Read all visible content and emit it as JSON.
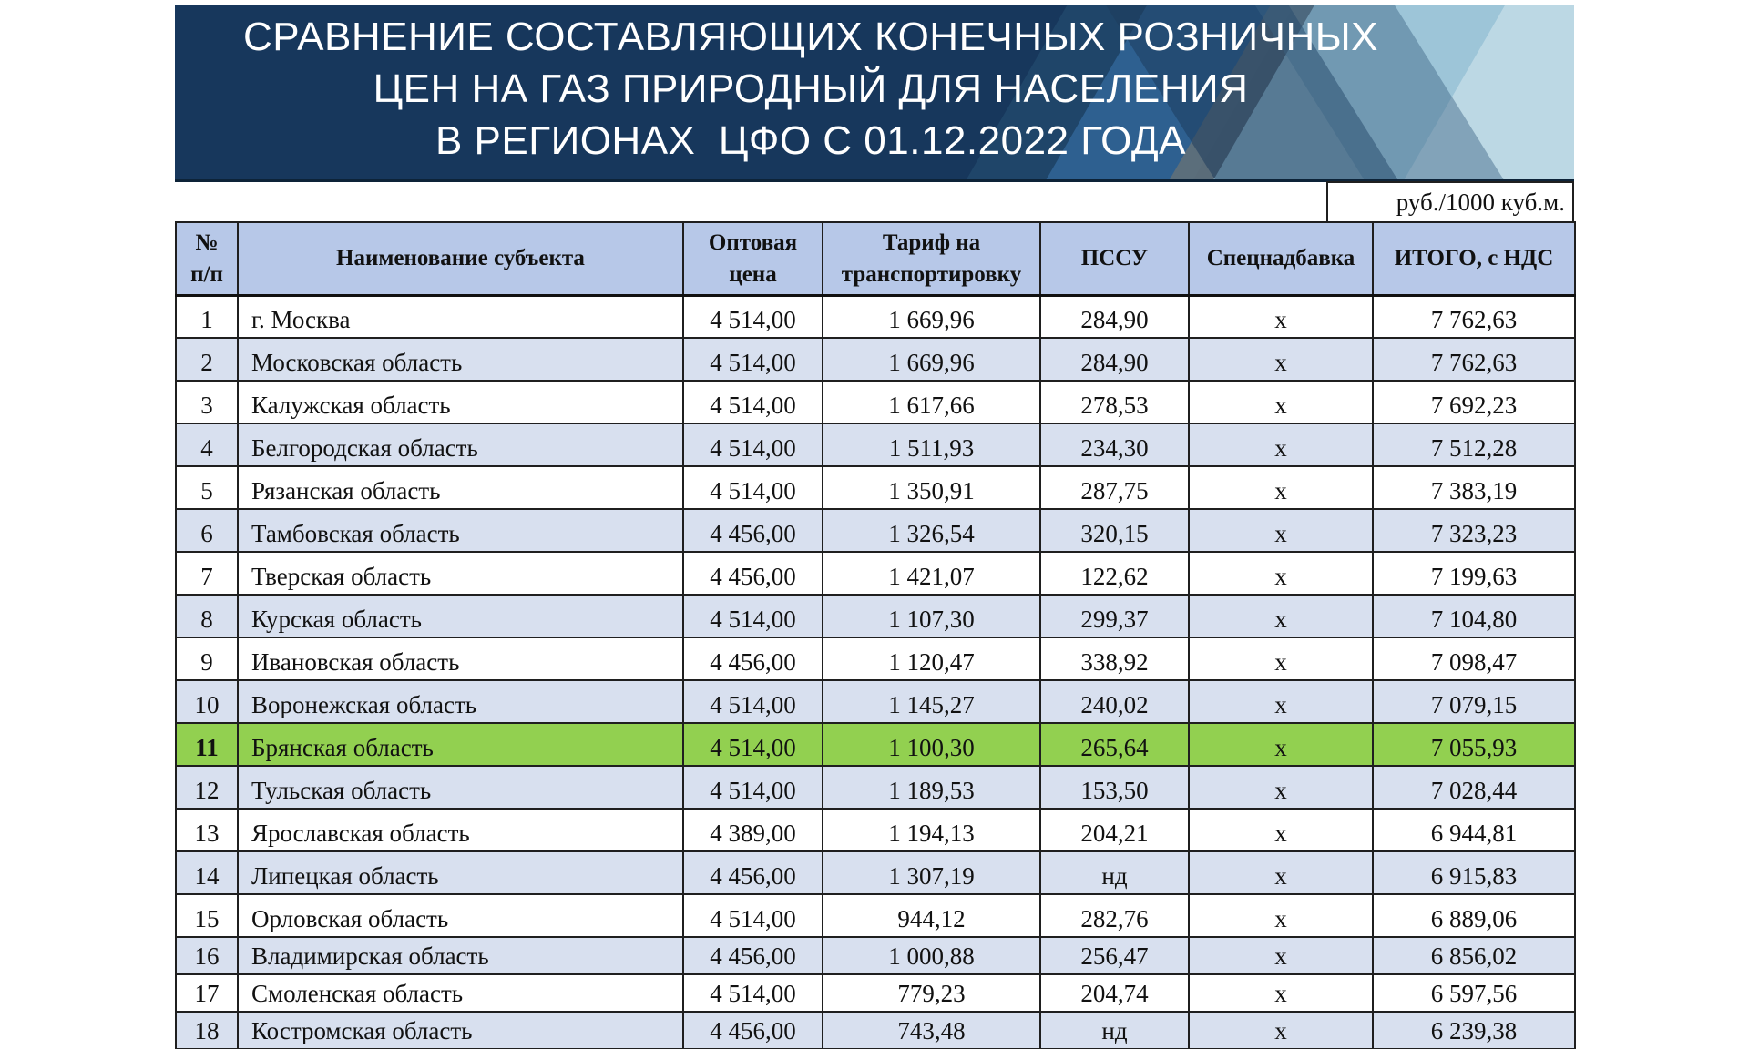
{
  "banner": {
    "title_lines": [
      "СРАВНЕНИЕ СОСТАВЛЯЮЩИХ КОНЕЧНЫХ РОЗНИЧНЫХ",
      "ЦЕН НА ГАЗ ПРИРОДНЫЙ ДЛЯ НАСЕЛЕНИЯ",
      "В РЕГИОНАХ  ЦФО С 01.12.2022 ГОДА"
    ]
  },
  "unit_label": "руб./1000 куб.м.",
  "colors": {
    "banner_bg": "#17375c",
    "header_bg": "#b7c8e8",
    "row_bg": "#ffffff",
    "row_alt_bg": "#d8e0ef",
    "highlight_bg": "#92d050",
    "text": "#111111"
  },
  "table": {
    "columns": [
      {
        "key": "num",
        "label": "№ п/п",
        "label_lines": [
          "№",
          "п/п"
        ]
      },
      {
        "key": "name",
        "label": "Наименование субъекта",
        "label_lines": [
          "Наименование субъекта"
        ]
      },
      {
        "key": "wholesale",
        "label": "Оптовая цена",
        "label_lines": [
          "Оптовая",
          "цена"
        ]
      },
      {
        "key": "transport",
        "label": "Тариф на транспортировку",
        "label_lines": [
          "Тариф на",
          "транспортировку"
        ]
      },
      {
        "key": "pssu",
        "label": "ПССУ",
        "label_lines": [
          "ПССУ"
        ]
      },
      {
        "key": "surcharge",
        "label": "Спецнадбавка",
        "label_lines": [
          "Спецнадбавка"
        ]
      },
      {
        "key": "total",
        "label": "ИТОГО, с НДС",
        "label_lines": [
          "ИТОГО, с НДС"
        ]
      }
    ],
    "rows": [
      {
        "num": "1",
        "name": "г. Москва",
        "wholesale": "4 514,00",
        "transport": "1 669,96",
        "pssu": "284,90",
        "surcharge": "х",
        "total": "7 762,63",
        "highlight": false
      },
      {
        "num": "2",
        "name": "Московская область",
        "wholesale": "4 514,00",
        "transport": "1 669,96",
        "pssu": "284,90",
        "surcharge": "х",
        "total": "7 762,63",
        "highlight": false
      },
      {
        "num": "3",
        "name": "Калужская область",
        "wholesale": "4 514,00",
        "transport": "1 617,66",
        "pssu": "278,53",
        "surcharge": "х",
        "total": "7 692,23",
        "highlight": false
      },
      {
        "num": "4",
        "name": "Белгородская область",
        "wholesale": "4 514,00",
        "transport": "1 511,93",
        "pssu": "234,30",
        "surcharge": "х",
        "total": "7 512,28",
        "highlight": false
      },
      {
        "num": "5",
        "name": "Рязанская область",
        "wholesale": "4 514,00",
        "transport": "1 350,91",
        "pssu": "287,75",
        "surcharge": "х",
        "total": "7 383,19",
        "highlight": false
      },
      {
        "num": "6",
        "name": "Тамбовская область",
        "wholesale": "4 456,00",
        "transport": "1 326,54",
        "pssu": "320,15",
        "surcharge": "х",
        "total": "7 323,23",
        "highlight": false
      },
      {
        "num": "7",
        "name": "Тверская область",
        "wholesale": "4 456,00",
        "transport": "1 421,07",
        "pssu": "122,62",
        "surcharge": "х",
        "total": "7 199,63",
        "highlight": false
      },
      {
        "num": "8",
        "name": "Курская область",
        "wholesale": "4 514,00",
        "transport": "1 107,30",
        "pssu": "299,37",
        "surcharge": "х",
        "total": "7 104,80",
        "highlight": false
      },
      {
        "num": "9",
        "name": "Ивановская область",
        "wholesale": "4 456,00",
        "transport": "1 120,47",
        "pssu": "338,92",
        "surcharge": "х",
        "total": "7 098,47",
        "highlight": false
      },
      {
        "num": "10",
        "name": "Воронежская область",
        "wholesale": "4 514,00",
        "transport": "1 145,27",
        "pssu": "240,02",
        "surcharge": "х",
        "total": "7 079,15",
        "highlight": false
      },
      {
        "num": "11",
        "name": "Брянская область",
        "wholesale": "4 514,00",
        "transport": "1 100,30",
        "pssu": "265,64",
        "surcharge": "х",
        "total": "7 055,93",
        "highlight": true
      },
      {
        "num": "12",
        "name": "Тульская область",
        "wholesale": "4 514,00",
        "transport": "1 189,53",
        "pssu": "153,50",
        "surcharge": "х",
        "total": "7 028,44",
        "highlight": false
      },
      {
        "num": "13",
        "name": "Ярославская область",
        "wholesale": "4 389,00",
        "transport": "1 194,13",
        "pssu": "204,21",
        "surcharge": "х",
        "total": "6 944,81",
        "highlight": false
      },
      {
        "num": "14",
        "name": "Липецкая область",
        "wholesale": "4 456,00",
        "transport": "1 307,19",
        "pssu": "нд",
        "surcharge": "х",
        "total": "6 915,83",
        "highlight": false
      },
      {
        "num": "15",
        "name": "Орловская область",
        "wholesale": "4 514,00",
        "transport": "944,12",
        "pssu": "282,76",
        "surcharge": "х",
        "total": "6 889,06",
        "highlight": false
      },
      {
        "num": "16",
        "name": "Владимирская область",
        "wholesale": "4 456,00",
        "transport": "1 000,88",
        "pssu": "256,47",
        "surcharge": "х",
        "total": "6 856,02",
        "highlight": false
      },
      {
        "num": "17",
        "name": "Смоленская область",
        "wholesale": "4 514,00",
        "transport": "779,23",
        "pssu": "204,74",
        "surcharge": "х",
        "total": "6 597,56",
        "highlight": false
      },
      {
        "num": "18",
        "name": "Костромская область",
        "wholesale": "4 456,00",
        "transport": "743,48",
        "pssu": "нд",
        "surcharge": "х",
        "total": "6 239,38",
        "highlight": false
      }
    ]
  }
}
